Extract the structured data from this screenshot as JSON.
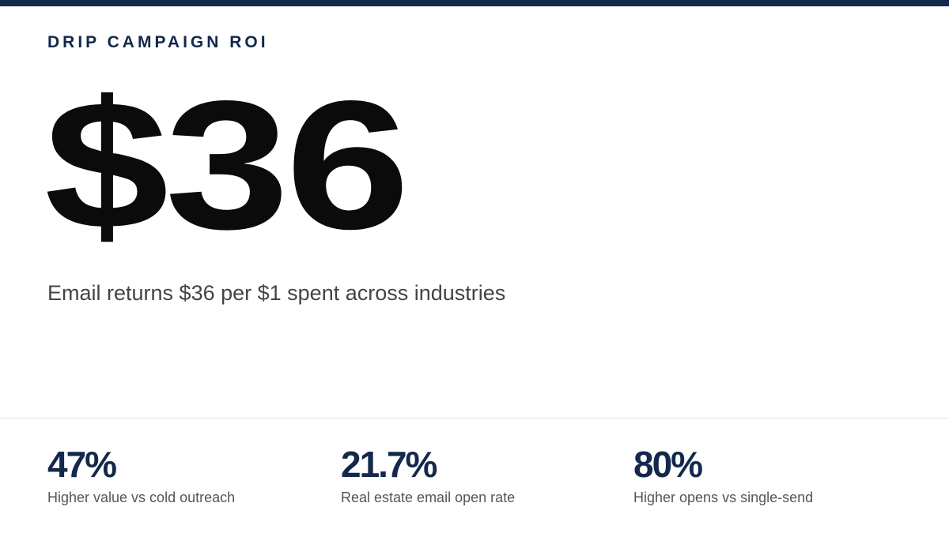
{
  "header": {
    "label": "DRIP CAMPAIGN ROI"
  },
  "hero": {
    "value": "$36",
    "caption": "Email returns $36 per $1 spent across industries"
  },
  "stats": [
    {
      "value": "47%",
      "label": "Higher value vs cold outreach"
    },
    {
      "value": "21.7%",
      "label": "Real estate email open rate"
    },
    {
      "value": "80%",
      "label": "Higher opens vs single-send"
    }
  ]
}
